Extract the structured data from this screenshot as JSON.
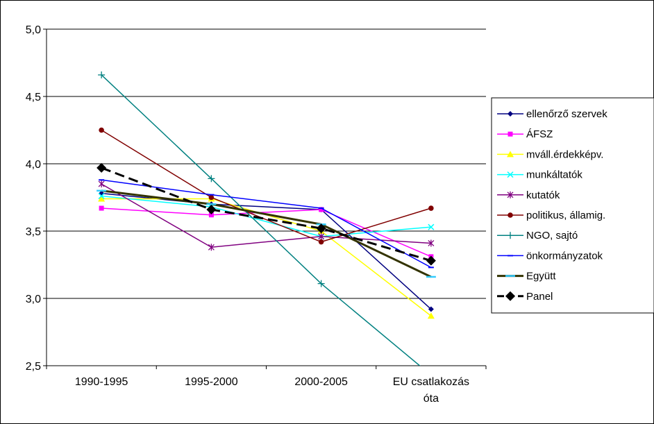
{
  "chart_data": {
    "type": "line",
    "title": "",
    "xlabel": "",
    "ylabel": "",
    "categories": [
      "1990-1995",
      "1995-2000",
      "2000-2005",
      "EU csatlakozás óta"
    ],
    "category_lines": [
      [
        "1990-1995"
      ],
      [
        "1995-2000"
      ],
      [
        "2000-2005"
      ],
      [
        "EU csatlakozás",
        "óta"
      ]
    ],
    "ylim": [
      2.5,
      5.0
    ],
    "yticks": [
      2.5,
      3.0,
      3.5,
      4.0,
      4.5,
      5.0
    ],
    "ytick_labels": [
      "2,5",
      "3,0",
      "3,5",
      "4,0",
      "4,5",
      "5,0"
    ],
    "grid": "horizontal",
    "legend_position": "right",
    "series": [
      {
        "name": "ellenőrző szervek",
        "color": "#000080",
        "marker": "diamond",
        "values": [
          3.78,
          3.7,
          3.66,
          2.92
        ]
      },
      {
        "name": "ÁFSZ",
        "color": "#ff00ff",
        "marker": "square",
        "values": [
          3.67,
          3.62,
          3.66,
          3.31
        ]
      },
      {
        "name": "mváll.érdekképv.",
        "color": "#ffff00",
        "marker": "triangle",
        "values": [
          3.74,
          3.74,
          3.5,
          2.87
        ]
      },
      {
        "name": "munkáltatók",
        "color": "#00ffff",
        "marker": "x",
        "values": [
          3.76,
          3.68,
          3.46,
          3.53
        ]
      },
      {
        "name": "kutatók",
        "color": "#800080",
        "marker": "star",
        "values": [
          3.85,
          3.38,
          3.46,
          3.41
        ]
      },
      {
        "name": "politikus, államig.",
        "color": "#800000",
        "marker": "circle",
        "values": [
          4.25,
          3.75,
          3.42,
          3.67
        ]
      },
      {
        "name": "NGO, sajtó",
        "color": "#008080",
        "marker": "plus",
        "values": [
          4.66,
          3.89,
          3.11,
          2.43
        ]
      },
      {
        "name": "önkormányzatok",
        "color": "#0000ff",
        "marker": "dash",
        "values": [
          3.88,
          3.77,
          3.67,
          3.23
        ]
      },
      {
        "name": "Együtt",
        "color": "#333300",
        "marker": "cyan-dash",
        "values": [
          3.8,
          3.7,
          3.55,
          3.16
        ]
      },
      {
        "name": "Panel",
        "color": "#000000",
        "marker": "bigdiamond",
        "values": [
          3.97,
          3.66,
          3.52,
          3.28
        ]
      }
    ]
  }
}
